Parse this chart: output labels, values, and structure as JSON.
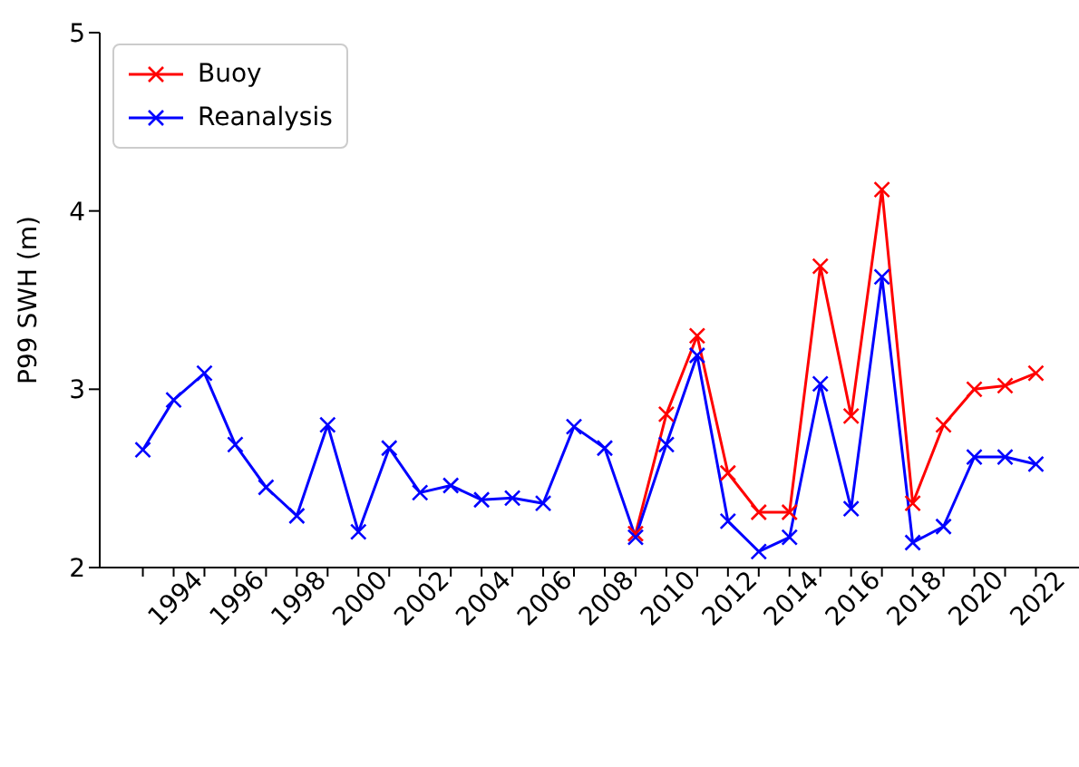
{
  "chart_data": {
    "type": "line",
    "ylabel": "P99 SWH (m)",
    "x": [
      1993,
      1994,
      1995,
      1996,
      1997,
      1998,
      1999,
      2000,
      2001,
      2002,
      2003,
      2004,
      2005,
      2006,
      2007,
      2008,
      2009,
      2010,
      2011,
      2012,
      2013,
      2014,
      2015,
      2016,
      2017,
      2018,
      2019,
      2020,
      2021,
      2022
    ],
    "series": [
      {
        "name": "Buoy",
        "color": "#ff0000",
        "x": [
          2009,
          2010,
          2011,
          2012,
          2013,
          2014,
          2015,
          2016,
          2017,
          2018,
          2019,
          2020,
          2021,
          2022
        ],
        "values": [
          2.19,
          2.86,
          3.3,
          2.53,
          2.31,
          2.31,
          3.69,
          2.85,
          4.12,
          2.36,
          2.8,
          3.0,
          3.02,
          3.09
        ]
      },
      {
        "name": "Reanalysis",
        "color": "#0000ff",
        "values": [
          2.66,
          2.94,
          3.09,
          2.69,
          2.45,
          2.29,
          2.8,
          2.2,
          2.67,
          2.42,
          2.46,
          2.38,
          2.39,
          2.36,
          2.79,
          2.67,
          2.17,
          2.69,
          3.19,
          2.26,
          2.09,
          2.17,
          3.03,
          2.33,
          3.63,
          2.14,
          2.23,
          2.62,
          2.62,
          2.58
        ]
      }
    ],
    "xlim": [
      1991.6,
      2023.4
    ],
    "xticks": [
      {
        "value": 1993,
        "label": null
      },
      1994,
      {
        "value": 1995,
        "label": null
      },
      1996,
      {
        "value": 1997,
        "label": null
      },
      1998,
      {
        "value": 1999,
        "label": null
      },
      2000,
      {
        "value": 2001,
        "label": null
      },
      2002,
      {
        "value": 2003,
        "label": null
      },
      2004,
      {
        "value": 2005,
        "label": null
      },
      2006,
      {
        "value": 2007,
        "label": null
      },
      2008,
      {
        "value": 2009,
        "label": null
      },
      2010,
      {
        "value": 2011,
        "label": null
      },
      2012,
      {
        "value": 2013,
        "label": null
      },
      2014,
      {
        "value": 2015,
        "label": null
      },
      2016,
      {
        "value": 2017,
        "label": null
      },
      2018,
      {
        "value": 2019,
        "label": null
      },
      2020,
      {
        "value": 2021,
        "label": null
      },
      2022
    ],
    "ylim": [
      2,
      5
    ],
    "yticks": [
      2,
      3,
      4,
      5
    ],
    "grid": false,
    "legend": "top left",
    "marker": "cross",
    "line_style": "solid"
  }
}
